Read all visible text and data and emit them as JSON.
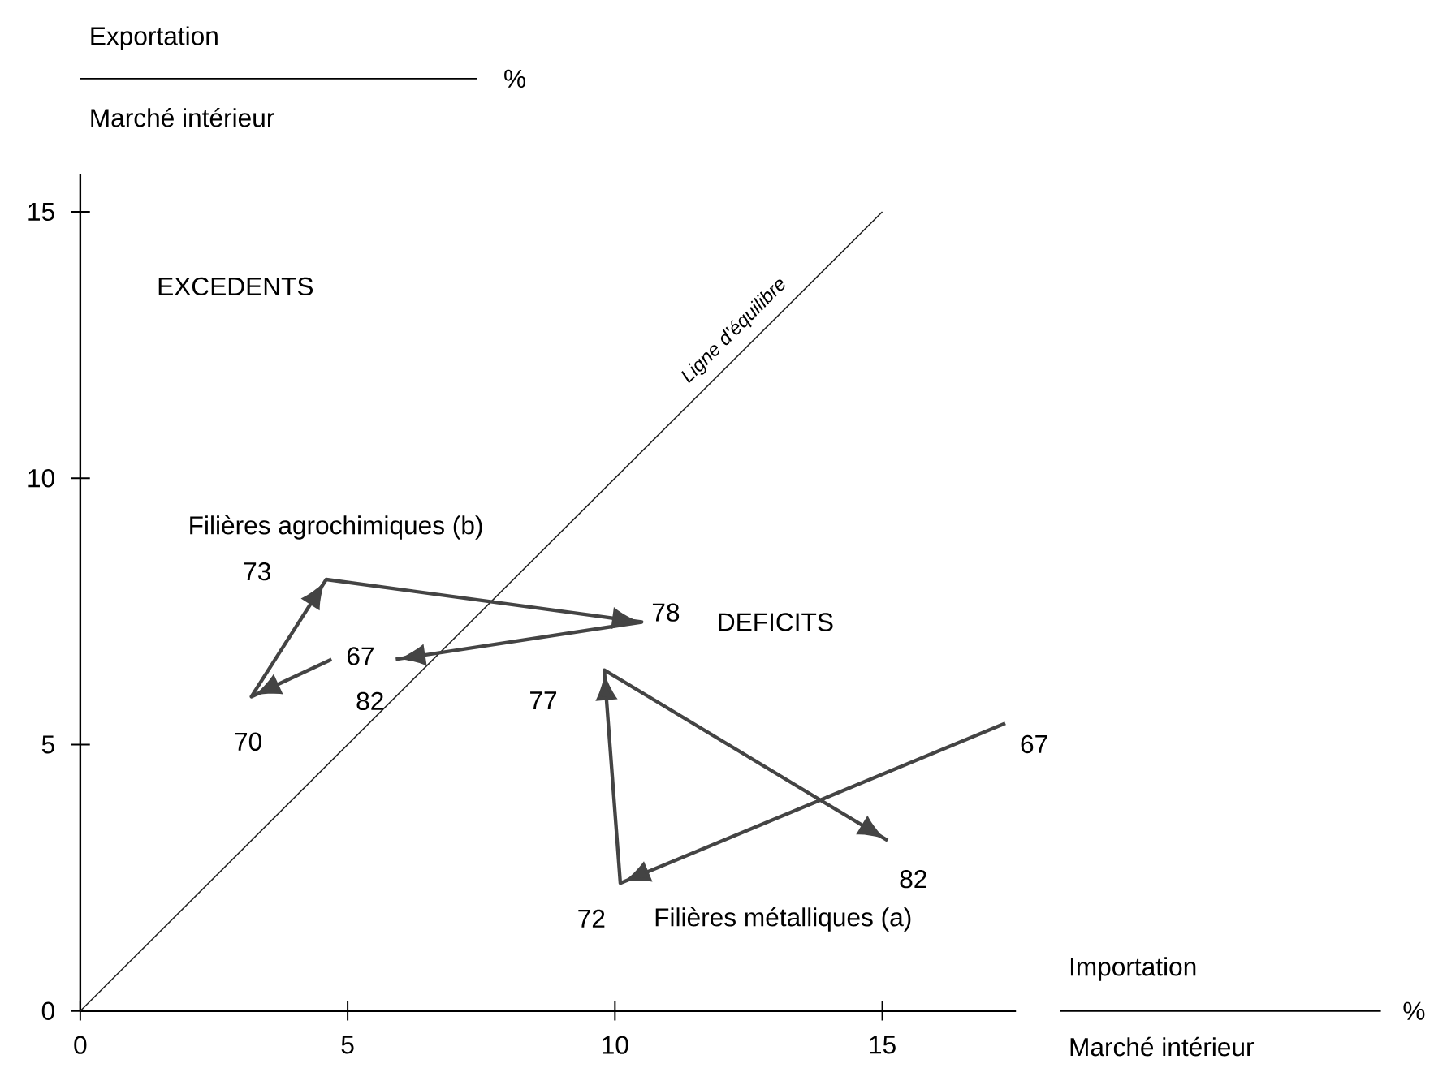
{
  "chart_data": {
    "type": "line",
    "ylabel": "Exportation",
    "xlabel": "Importation",
    "annotations": [
      "%",
      "Marché intérieur",
      "%",
      "Marché intérieur",
      "EXCEDENTS",
      "DEFICITS",
      {
        "text": "67",
        "x": 4.7,
        "y": 6.6
      },
      {
        "text": "70",
        "x": 3.2,
        "y": 5.9
      },
      {
        "text": "73",
        "x": 4.6,
        "y": 8.1
      },
      {
        "text": "78",
        "x": 10.5,
        "y": 7.3
      },
      {
        "text": "82",
        "x": 5.9,
        "y": 6.6
      },
      {
        "text": "67",
        "x": 17.3,
        "y": 5.4
      },
      {
        "text": "72",
        "x": 10.1,
        "y": 2.4
      },
      {
        "text": "77",
        "x": 9.8,
        "y": 6.4
      },
      {
        "text": "82",
        "x": 15.1,
        "y": 3.2
      }
    ],
    "xlim": [
      0,
      17.5
    ],
    "ylim": [
      0,
      15.7
    ],
    "xticks": [
      0,
      5,
      10,
      15
    ],
    "yticks": [
      0,
      5,
      10,
      15
    ],
    "series": [
      {
        "name": "Ligne d'équilibre",
        "color": "#222222",
        "x": [
          0,
          15
        ],
        "values": [
          0,
          15
        ]
      },
      {
        "name": "Filières agrochimiques (b)",
        "color": "#444444",
        "x": [
          4.7,
          3.2,
          4.6,
          10.5,
          5.9
        ],
        "values": [
          6.6,
          5.9,
          8.1,
          7.3,
          6.6
        ]
      },
      {
        "name": "Filières métalliques (a)",
        "color": "#444444",
        "x": [
          17.3,
          10.1,
          9.8,
          15.1
        ],
        "values": [
          5.4,
          2.4,
          6.4,
          3.2
        ]
      }
    ]
  }
}
